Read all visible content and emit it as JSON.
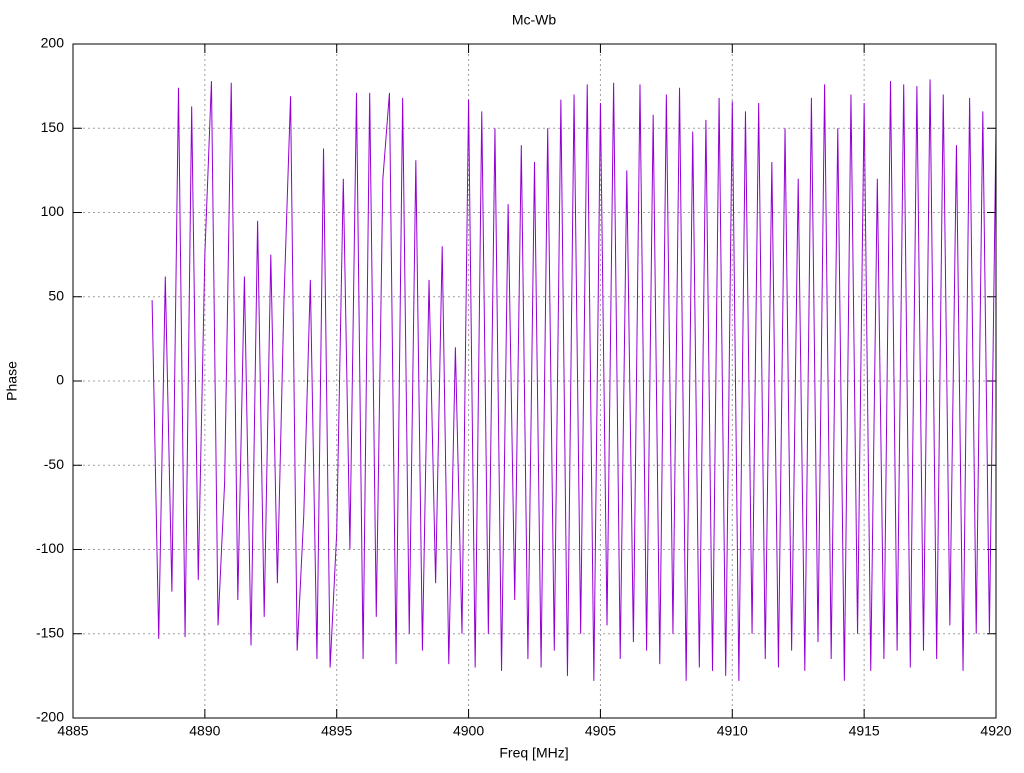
{
  "chart_data": {
    "type": "line",
    "title": "Mc-Wb",
    "xlabel": "Freq [MHz]",
    "ylabel": "Phase",
    "x": [
      4888,
      4888.25,
      4888.5,
      4888.75,
      4889,
      4889.25,
      4889.5,
      4889.75,
      4890,
      4890.25,
      4890.5,
      4890.75,
      4891,
      4891.25,
      4891.5,
      4891.75,
      4892,
      4892.25,
      4892.5,
      4892.75,
      4893,
      4893.25,
      4893.5,
      4893.75,
      4894,
      4894.25,
      4894.5,
      4894.75,
      4895,
      4895.25,
      4895.5,
      4895.75,
      4896,
      4896.25,
      4896.5,
      4896.75,
      4897,
      4897.25,
      4897.5,
      4897.75,
      4898,
      4898.25,
      4898.5,
      4898.75,
      4899,
      4899.25,
      4899.5,
      4899.75,
      4900,
      4900.25,
      4900.5,
      4900.75,
      4901,
      4901.25,
      4901.5,
      4901.75,
      4902,
      4902.25,
      4902.5,
      4902.75,
      4903,
      4903.25,
      4903.5,
      4903.75,
      4904,
      4904.25,
      4904.5,
      4904.75,
      4905,
      4905.25,
      4905.5,
      4905.75,
      4906,
      4906.25,
      4906.5,
      4906.75,
      4907,
      4907.25,
      4907.5,
      4907.75,
      4908,
      4908.25,
      4908.5,
      4908.75,
      4909,
      4909.25,
      4909.5,
      4909.75,
      4910,
      4910.25,
      4910.5,
      4910.75,
      4911,
      4911.25,
      4911.5,
      4911.75,
      4912,
      4912.25,
      4912.5,
      4912.75,
      4913,
      4913.25,
      4913.5,
      4913.75,
      4914,
      4914.25,
      4914.5,
      4914.75,
      4915,
      4915.25,
      4915.5,
      4915.75,
      4916,
      4916.25,
      4916.5,
      4916.75,
      4917,
      4917.25,
      4917.5,
      4917.75,
      4918,
      4918.25,
      4918.5,
      4918.75,
      4919,
      4919.25,
      4919.5,
      4919.75,
      4920
    ],
    "series": [
      {
        "name": null,
        "color": "#9400d3",
        "values": [
          48,
          -153,
          62,
          -125,
          174,
          -152,
          163,
          -118,
          75,
          178,
          -145,
          -60,
          177,
          -130,
          62,
          -157,
          95,
          -140,
          75,
          -120,
          48,
          169,
          -160,
          -80,
          60,
          -165,
          138,
          -170,
          -90,
          120,
          -100,
          171,
          -165,
          171,
          -140,
          120,
          171,
          -168,
          168,
          -150,
          131,
          -160,
          60,
          -120,
          80,
          -168,
          20,
          -150,
          167,
          -170,
          160,
          -150,
          150,
          -172,
          105,
          -130,
          140,
          -165,
          130,
          -170,
          150,
          -160,
          167,
          -175,
          170,
          -150,
          176,
          -178,
          165,
          -145,
          177,
          -165,
          125,
          -155,
          176,
          -160,
          158,
          -168,
          170,
          -150,
          174,
          -178,
          148,
          -170,
          155,
          -172,
          168,
          -175,
          166,
          -178,
          160,
          -150,
          165,
          -165,
          130,
          -170,
          150,
          -160,
          120,
          -172,
          168,
          -155,
          176,
          -165,
          150,
          -178,
          170,
          -150,
          165,
          -172,
          120,
          -165,
          178,
          -160,
          176,
          -170,
          175,
          -160,
          179,
          -165,
          170,
          -145,
          140,
          -172,
          168,
          -150,
          160,
          -150,
          150
        ]
      }
    ],
    "xlim": [
      4885,
      4920
    ],
    "xticks": [
      4885,
      4890,
      4895,
      4900,
      4905,
      4910,
      4915,
      4920
    ],
    "ylim": [
      -200,
      200
    ],
    "yticks": [
      -200,
      -150,
      -100,
      -50,
      0,
      50,
      100,
      150,
      200
    ],
    "grid": true
  }
}
